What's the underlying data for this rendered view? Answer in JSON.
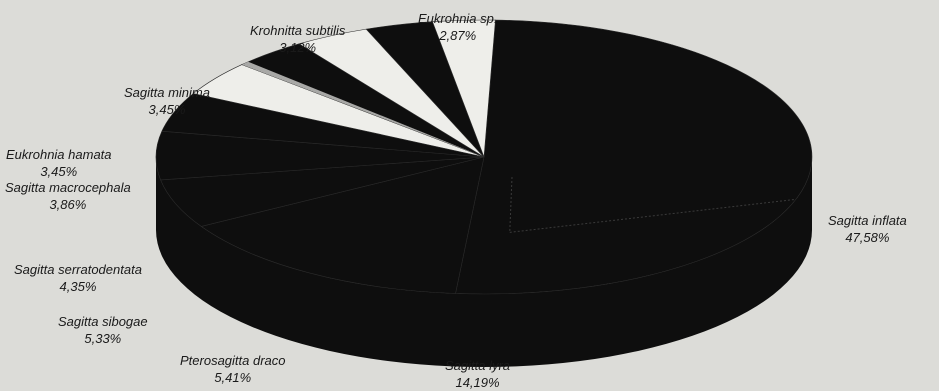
{
  "chart_data": {
    "type": "pie",
    "variant": "3d",
    "start_angle_deg": -88,
    "direction": "clockwise",
    "colors": {
      "background": "#dcdcd8",
      "dark": "#0e0e0e",
      "light": "#eeeeea",
      "mid": "#a8a8a6"
    },
    "slices": [
      {
        "name": "Sagitta inflata",
        "value": "47,58%",
        "pct": 47.58,
        "color": "#0e0e0e"
      },
      {
        "name": "Sagitta lyra",
        "value": "14,19%",
        "pct": 14.19,
        "color": "#0e0e0e"
      },
      {
        "name": "Pterosagitta draco",
        "value": "5,41%",
        "pct": 5.41,
        "color": "#0e0e0e"
      },
      {
        "name": "Sagitta sibogae",
        "value": "5,33%",
        "pct": 5.33,
        "color": "#0e0e0e"
      },
      {
        "name": "Sagitta serratodentata",
        "value": "4,35%",
        "pct": 4.35,
        "color": "#0e0e0e"
      },
      {
        "name": "Sagitta macrocephala",
        "value": "3,86%",
        "pct": 3.86,
        "color": "#eeeeea"
      },
      {
        "name": "Eukrohnia hamata",
        "value": "3,45%",
        "pct": 3.45,
        "color": "#0e0e0e"
      },
      {
        "name": "Sagitta minima",
        "value": "3,45%",
        "pct": 3.45,
        "color": "#eeeeea"
      },
      {
        "name": "Krohnitta subtilis",
        "value": "3,12%",
        "pct": 3.12,
        "color": "#0e0e0e"
      },
      {
        "name": "Eukrohnia sp.",
        "value": "2,87%",
        "pct": 2.87,
        "color": "#eeeeea"
      }
    ]
  }
}
